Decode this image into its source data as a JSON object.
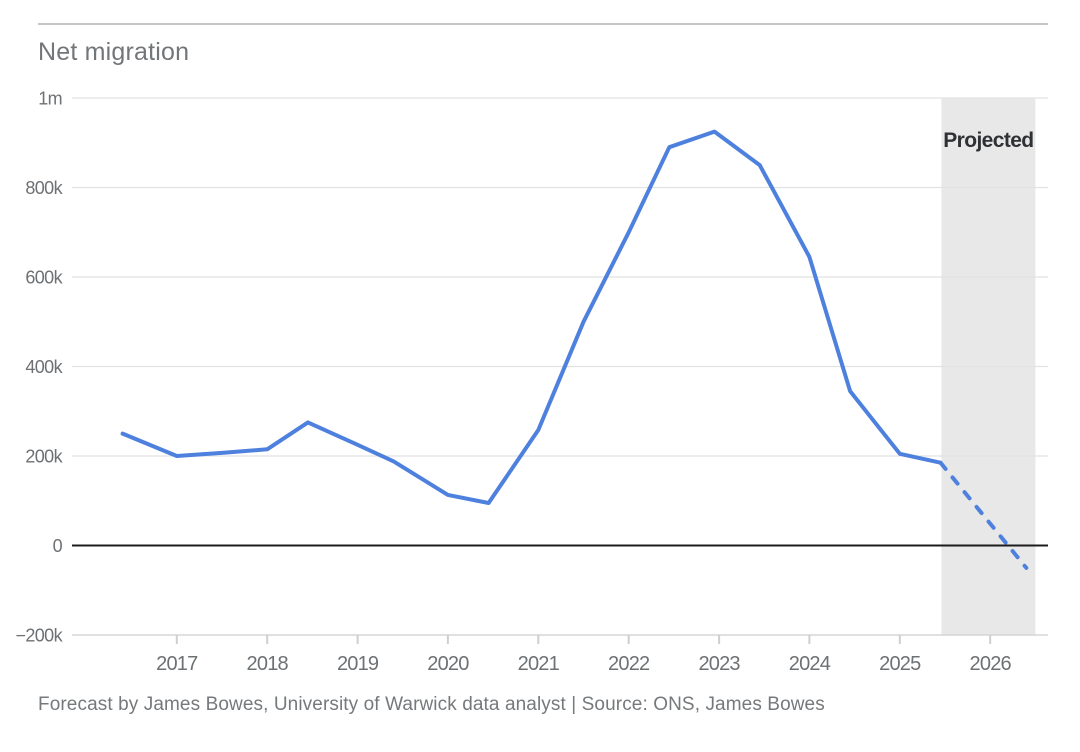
{
  "header": {
    "title": "Net migration"
  },
  "footer": {
    "text": "Forecast by James Bowes, University of Warwick data analyst | Source: ONS, James Bowes"
  },
  "colors": {
    "line": "#4e80dd",
    "projection_band": "#e8e8e8",
    "grid": "#e2e2e2",
    "axis_bottom": "#d6d6d6",
    "zero_line": "#1c1c1c",
    "tick_mark": "#cfcfcf"
  },
  "chart_data": {
    "type": "line",
    "title": "Net migration",
    "xlabel": "",
    "ylabel": "",
    "grid": true,
    "legend": false,
    "ylim": [
      -200000,
      1000000
    ],
    "xlim": [
      2015.84,
      2026.64
    ],
    "y_ticks": [
      {
        "value": 1000000,
        "label": "1m"
      },
      {
        "value": 800000,
        "label": "800k"
      },
      {
        "value": 600000,
        "label": "600k"
      },
      {
        "value": 400000,
        "label": "400k"
      },
      {
        "value": 200000,
        "label": "200k"
      },
      {
        "value": 0,
        "label": "0"
      },
      {
        "value": -200000,
        "label": "−200k"
      }
    ],
    "x_ticks": [
      {
        "value": 2017,
        "label": "2017"
      },
      {
        "value": 2018,
        "label": "2018"
      },
      {
        "value": 2019,
        "label": "2019"
      },
      {
        "value": 2020,
        "label": "2020"
      },
      {
        "value": 2021,
        "label": "2021"
      },
      {
        "value": 2022,
        "label": "2022"
      },
      {
        "value": 2023,
        "label": "2023"
      },
      {
        "value": 2024,
        "label": "2024"
      },
      {
        "value": 2025,
        "label": "2025"
      },
      {
        "value": 2026,
        "label": "2026"
      }
    ],
    "zero_baseline": true,
    "projection_band": {
      "x_start": 2025.46,
      "x_end": 2026.5,
      "label": "Projected"
    },
    "series": [
      {
        "name": "Net migration",
        "style": "solid-then-dashed",
        "projected_from_x": 2025.45,
        "points": [
          {
            "x": 2016.4,
            "y": 250000
          },
          {
            "x": 2017.0,
            "y": 200000
          },
          {
            "x": 2017.5,
            "y": 207000
          },
          {
            "x": 2018.0,
            "y": 215000
          },
          {
            "x": 2018.45,
            "y": 275000
          },
          {
            "x": 2019.0,
            "y": 225000
          },
          {
            "x": 2019.4,
            "y": 188000
          },
          {
            "x": 2020.0,
            "y": 113000
          },
          {
            "x": 2020.45,
            "y": 95000
          },
          {
            "x": 2021.0,
            "y": 258000
          },
          {
            "x": 2021.5,
            "y": 500000
          },
          {
            "x": 2022.0,
            "y": 700000
          },
          {
            "x": 2022.45,
            "y": 890000
          },
          {
            "x": 2022.95,
            "y": 925000
          },
          {
            "x": 2023.45,
            "y": 850000
          },
          {
            "x": 2024.0,
            "y": 645000
          },
          {
            "x": 2024.45,
            "y": 345000
          },
          {
            "x": 2025.0,
            "y": 205000
          },
          {
            "x": 2025.45,
            "y": 185000
          },
          {
            "x": 2026.4,
            "y": -50000
          }
        ]
      }
    ]
  }
}
